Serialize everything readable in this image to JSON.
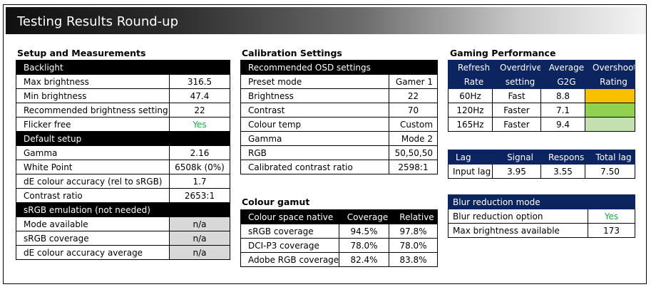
{
  "banner": {
    "title": "Testing Results Round-up"
  },
  "setup": {
    "title": "Setup and Measurements",
    "backlight_header": "Backlight",
    "backlight_rows": [
      {
        "label": "Max brightness",
        "value": "316.5"
      },
      {
        "label": "Min brightness",
        "value": "47.4"
      },
      {
        "label": "Recommended brightness setting",
        "value": "22"
      },
      {
        "label": "Flicker free",
        "value": "Yes"
      }
    ],
    "default_header": "Default setup",
    "default_rows": [
      {
        "label": "Gamma",
        "value": "2.16"
      },
      {
        "label": "White Point",
        "value": "6508k (0%)"
      },
      {
        "label": "dE colour accuracy (rel to sRGB)",
        "value": "1.7"
      },
      {
        "label": "Contrast ratio",
        "value": "2653:1"
      }
    ],
    "srgb_header": "sRGB emulation (not needed)",
    "srgb_rows": [
      {
        "label": "Mode available",
        "value": "n/a"
      },
      {
        "label": "sRGB coverage",
        "value": "n/a"
      },
      {
        "label": "dE colour accuracy average",
        "value": "n/a"
      }
    ]
  },
  "calibration": {
    "title": "Calibration Settings",
    "header": "Recommended OSD settings",
    "rows": [
      {
        "label": "Preset mode",
        "value": "Gamer 1"
      },
      {
        "label": "Brightness",
        "value": "22"
      },
      {
        "label": "Contrast",
        "value": "70"
      },
      {
        "label": "Colour temp",
        "value": "Custom"
      },
      {
        "label": "Gamma",
        "value": "Mode 2"
      },
      {
        "label": "RGB",
        "value": "50,50,50"
      }
    ],
    "contrast_label": "Calibrated contrast ratio",
    "contrast_value": "2598:1"
  },
  "gamut": {
    "title": "Colour gamut",
    "headers": [
      "Colour space native",
      "Coverage",
      "Relative"
    ],
    "rows": [
      {
        "label": "sRGB coverage",
        "coverage": "94.5%",
        "relative": "97.8%"
      },
      {
        "label": "DCI-P3 coverage",
        "coverage": "78.0%",
        "relative": "78.0%"
      },
      {
        "label": "Adobe RGB coverage",
        "coverage": "82.4%",
        "relative": "83.8%"
      }
    ]
  },
  "gaming": {
    "title": "Gaming Performance",
    "headers": [
      [
        "Refresh",
        "Rate"
      ],
      [
        "Overdrive",
        "setting"
      ],
      [
        "Average",
        "G2G"
      ],
      [
        "Overshoot",
        "Rating"
      ]
    ],
    "rows": [
      {
        "rate": "60Hz",
        "setting": "Fast",
        "g2g": "8.8",
        "color": "#f9c000"
      },
      {
        "rate": "120Hz",
        "setting": "Faster",
        "g2g": "7.1",
        "color": "#92d050"
      },
      {
        "rate": "165Hz",
        "setting": "Faster",
        "g2g": "9.4",
        "color": "#c4e0b0"
      }
    ]
  },
  "lag": {
    "headers": [
      "Lag",
      "Signal",
      "Response",
      "Total lag"
    ],
    "row": {
      "label": "Input lag",
      "signal": "3.95",
      "response": "3.55",
      "total": "7.50"
    }
  },
  "blur": {
    "header": "Blur reduction mode",
    "rows": [
      {
        "label": "Blur reduction option",
        "value": "Yes"
      },
      {
        "label": "Max brightness available",
        "value": "173"
      }
    ]
  }
}
